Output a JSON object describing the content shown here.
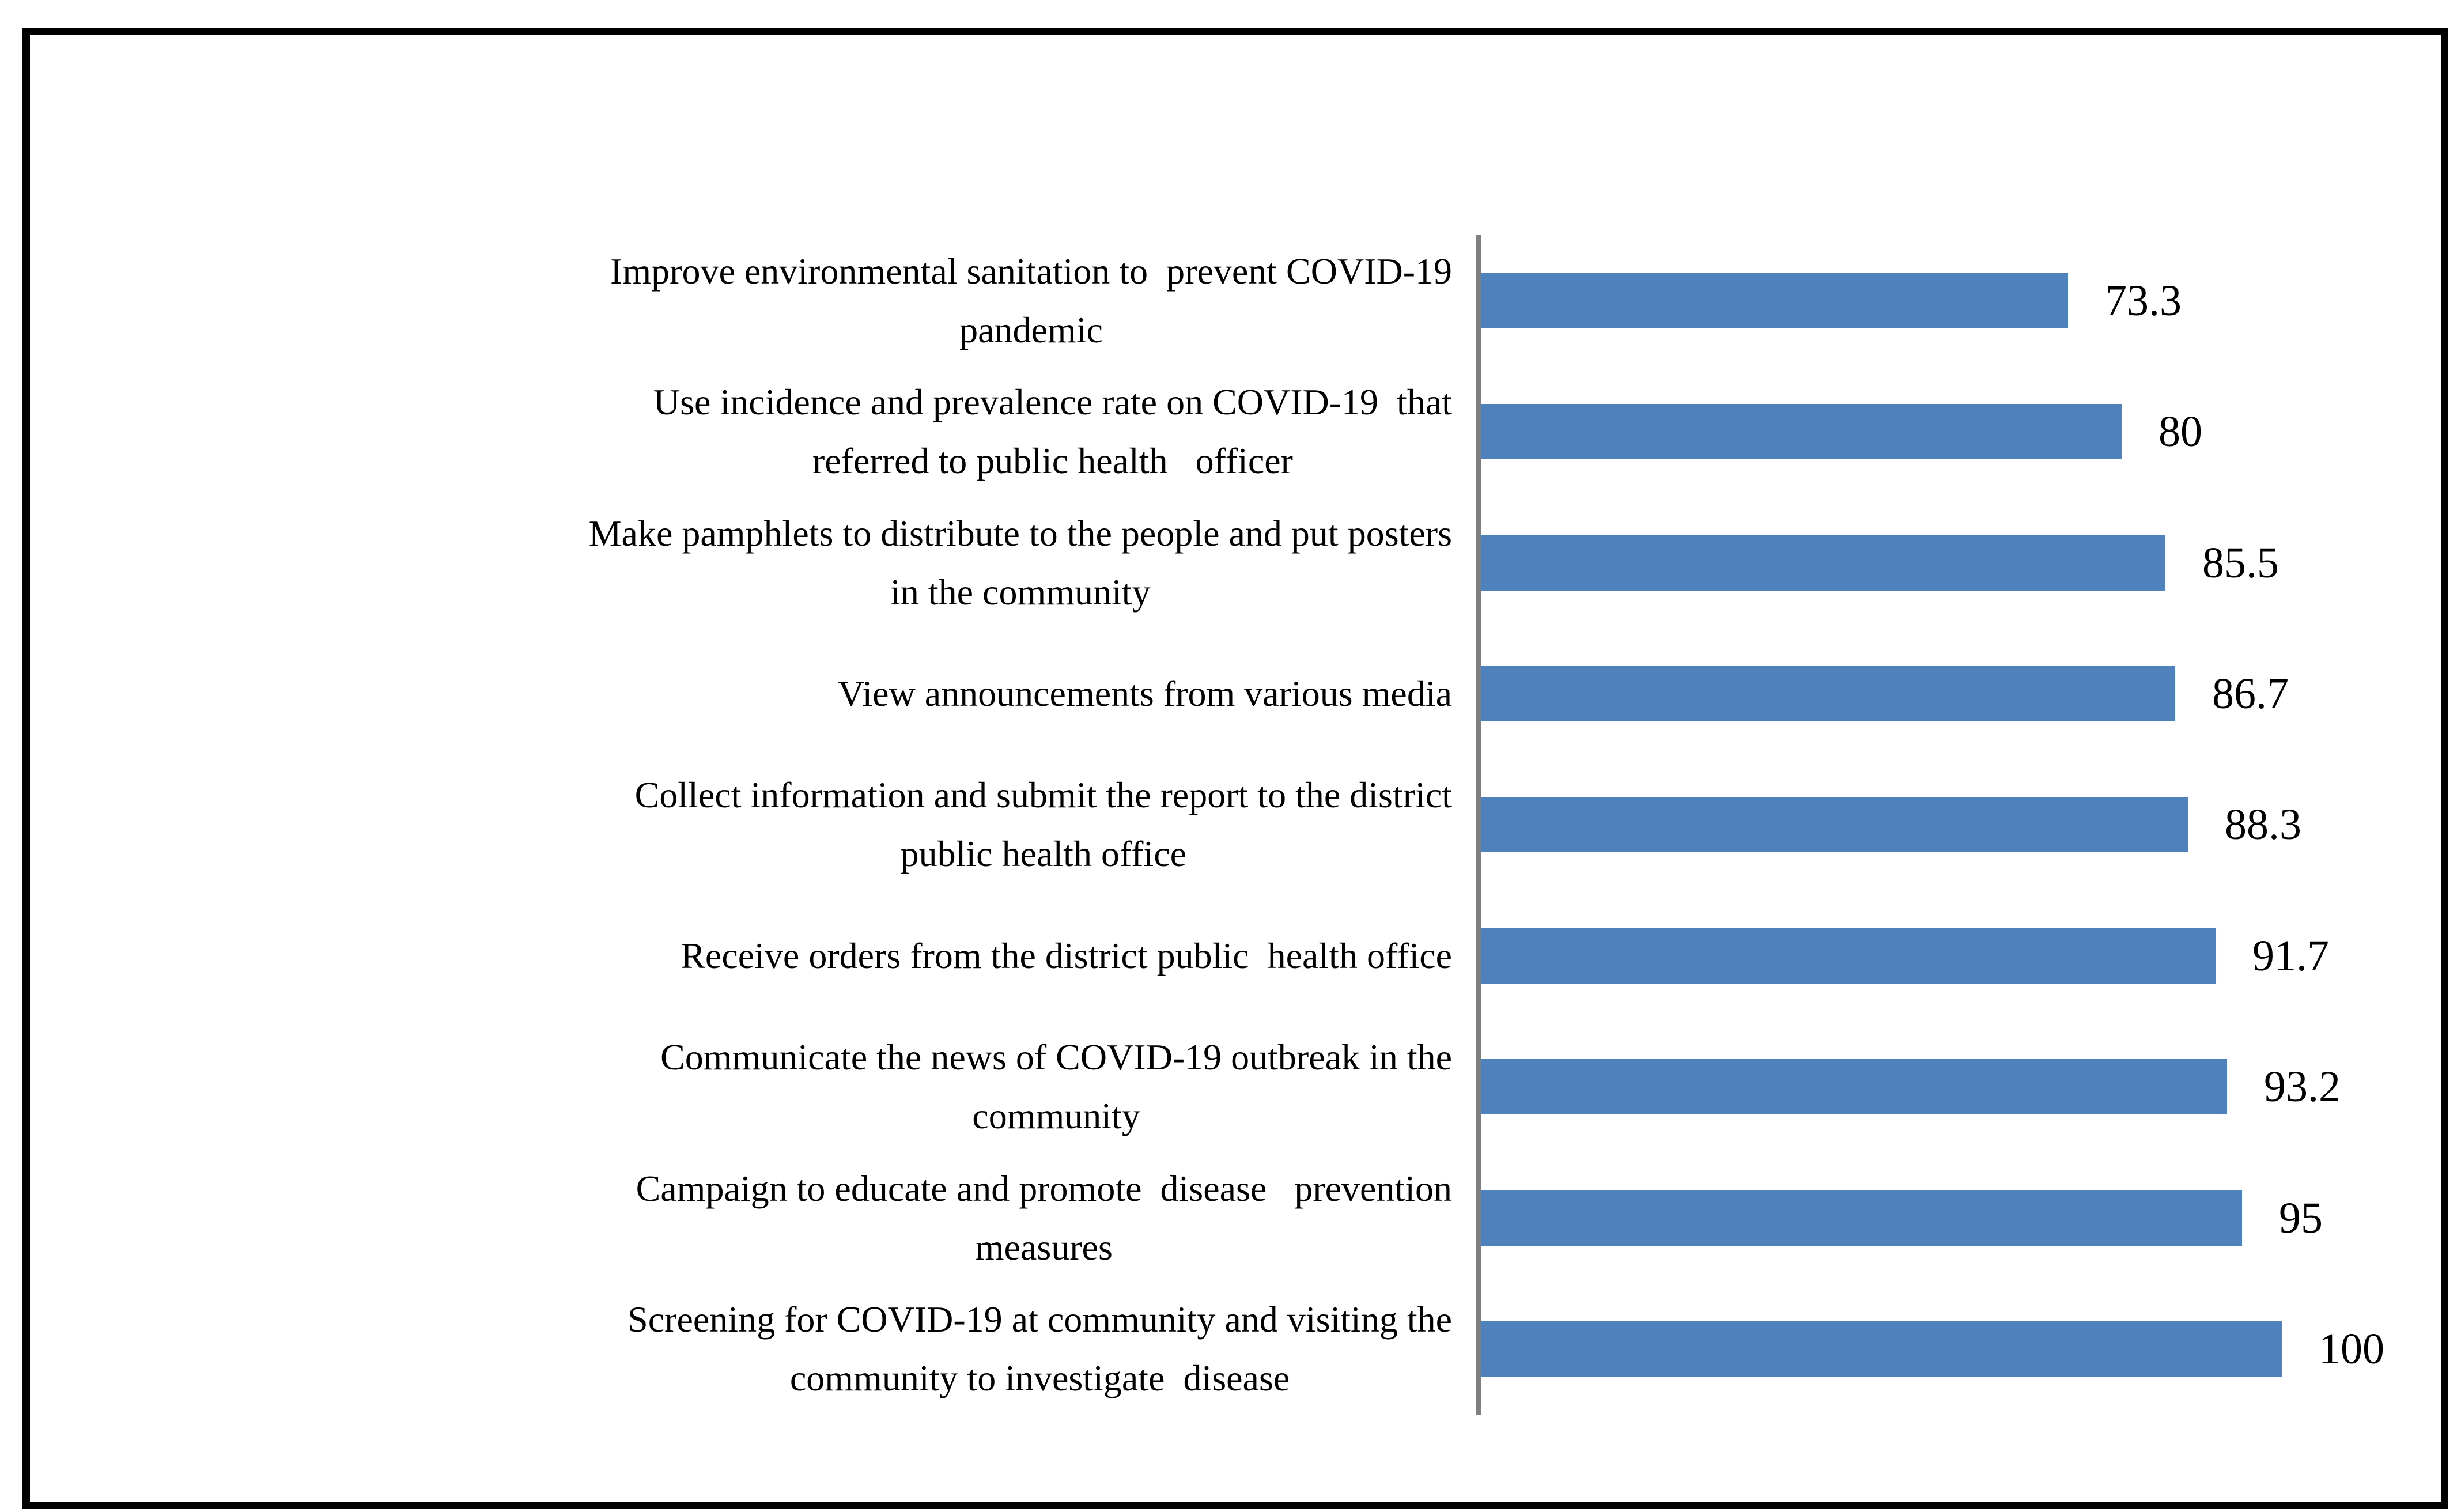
{
  "figure": {
    "background_color": "#ffffff",
    "frame_color": "#000000"
  },
  "chart_data": {
    "type": "bar",
    "orientation": "horizontal",
    "title": "",
    "xlabel": "",
    "ylabel": "",
    "xlim": [
      0,
      100
    ],
    "grid": false,
    "legend": false,
    "bar_color": "#4F81BD",
    "axis_line_color": "#7F7F7F",
    "categories": [
      "Improve environmental sanitation to  prevent COVID-19\npandemic",
      "Use incidence and prevalence rate on COVID-19  that\nreferred to public health   officer",
      "Make pamphlets to distribute to the people and put posters\nin the community",
      "View announcements from various media",
      "Collect information and submit the report to the district\npublic health office",
      "Receive orders from the district public  health office",
      "Communicate the news of COVID-19 outbreak in the\ncommunity",
      "Campaign to educate and promote  disease   prevention\nmeasures",
      "Screening for COVID-19 at community and visiting the\ncommunity to investigate  disease"
    ],
    "values": [
      73.3,
      80,
      85.5,
      86.7,
      88.3,
      91.7,
      93.2,
      95,
      100
    ]
  }
}
